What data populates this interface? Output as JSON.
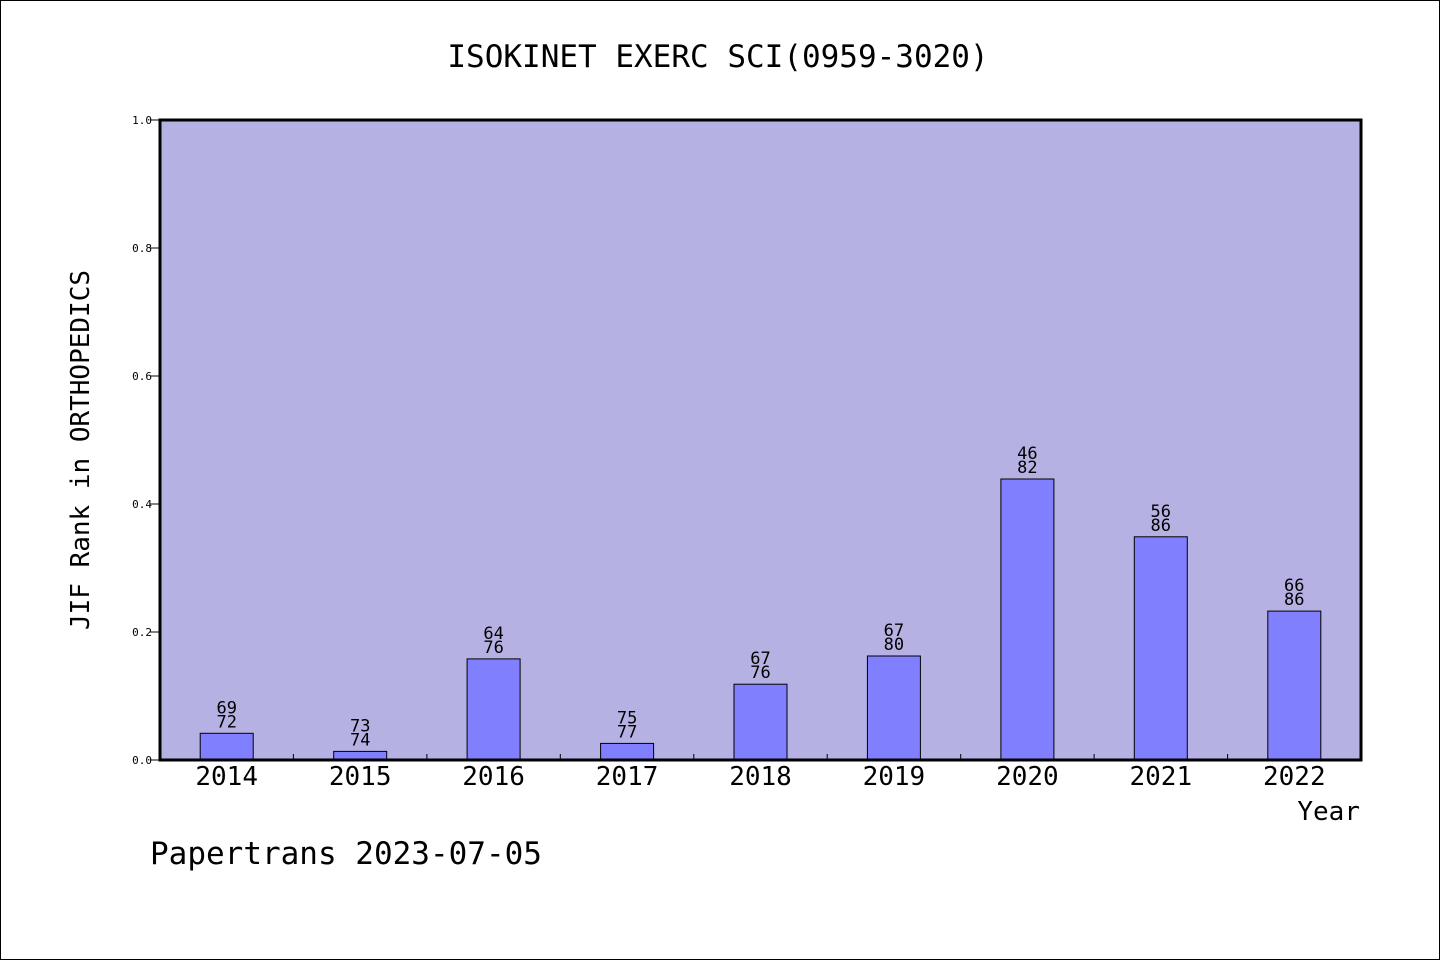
{
  "colors": {
    "background": "#ffffff",
    "plot_background": "#b6b1e3",
    "bar_fill": "#8080ff",
    "bar_stroke": "#000000",
    "frame": "#000000"
  },
  "footer": "Papertrans 2023-07-05",
  "chart_data": {
    "type": "bar",
    "title": "ISOKINET EXERC SCI(0959-3020)",
    "xlabel": "Year",
    "ylabel": "JIF Rank in ORTHOPEDICS",
    "ylim": [
      0,
      1.0
    ],
    "yticks": [
      "0.0",
      "0.2",
      "0.4",
      "0.6",
      "0.8",
      "1.0"
    ],
    "grid": false,
    "legend": "none",
    "categories": [
      "2014",
      "2015",
      "2016",
      "2017",
      "2018",
      "2019",
      "2020",
      "2021",
      "2022"
    ],
    "values": [
      0.0417,
      0.0135,
      0.1579,
      0.026,
      0.1184,
      0.1625,
      0.439,
      0.3488,
      0.2326
    ],
    "rank": [
      "69",
      "73",
      "64",
      "75",
      "67",
      "67",
      "46",
      "56",
      "66"
    ],
    "total": [
      "72",
      "74",
      "76",
      "77",
      "76",
      "80",
      "82",
      "86",
      "86"
    ]
  }
}
